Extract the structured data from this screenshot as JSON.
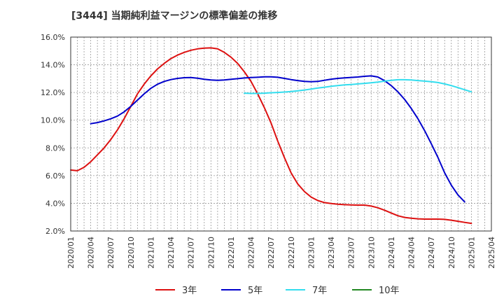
{
  "chart_data": {
    "type": "line",
    "title": "[3444]  当期純利益マージンの標準偏差の推移",
    "xlabel": "",
    "ylabel": "",
    "ylim": [
      2.0,
      16.0
    ],
    "yticks": [
      "2.0%",
      "4.0%",
      "6.0%",
      "8.0%",
      "10.0%",
      "12.0%",
      "14.0%",
      "16.0%"
    ],
    "ytick_values": [
      2,
      4,
      6,
      8,
      10,
      12,
      14,
      16
    ],
    "xticks": [
      "2020/01",
      "2020/04",
      "2020/07",
      "2020/10",
      "2021/01",
      "2021/04",
      "2021/07",
      "2021/10",
      "2022/01",
      "2022/04",
      "2022/07",
      "2022/10",
      "2023/01",
      "2023/04",
      "2023/07",
      "2023/10",
      "2024/01",
      "2024/04",
      "2024/07",
      "2024/10",
      "2025/01",
      "2025/04"
    ],
    "grid": true,
    "legend_position": "bottom",
    "series": [
      {
        "name": "3年",
        "color": "#dd1111",
        "points": [
          [
            "2020/01",
            6.4
          ],
          [
            "2020/02",
            6.35
          ],
          [
            "2020/03",
            6.6
          ],
          [
            "2020/04",
            7.0
          ],
          [
            "2020/05",
            7.5
          ],
          [
            "2020/06",
            8.0
          ],
          [
            "2020/07",
            8.6
          ],
          [
            "2020/08",
            9.3
          ],
          [
            "2020/09",
            10.1
          ],
          [
            "2020/10",
            11.0
          ],
          [
            "2020/11",
            11.9
          ],
          [
            "2020/12",
            12.6
          ],
          [
            "2021/01",
            13.2
          ],
          [
            "2021/02",
            13.7
          ],
          [
            "2021/03",
            14.1
          ],
          [
            "2021/04",
            14.45
          ],
          [
            "2021/05",
            14.7
          ],
          [
            "2021/06",
            14.9
          ],
          [
            "2021/07",
            15.05
          ],
          [
            "2021/08",
            15.15
          ],
          [
            "2021/09",
            15.2
          ],
          [
            "2021/10",
            15.22
          ],
          [
            "2021/11",
            15.15
          ],
          [
            "2021/12",
            14.9
          ],
          [
            "2022/01",
            14.55
          ],
          [
            "2022/02",
            14.1
          ],
          [
            "2022/03",
            13.5
          ],
          [
            "2022/04",
            12.8
          ],
          [
            "2022/05",
            11.9
          ],
          [
            "2022/06",
            10.9
          ],
          [
            "2022/07",
            9.8
          ],
          [
            "2022/08",
            8.5
          ],
          [
            "2022/09",
            7.3
          ],
          [
            "2022/10",
            6.2
          ],
          [
            "2022/11",
            5.4
          ],
          [
            "2022/12",
            4.85
          ],
          [
            "2023/01",
            4.45
          ],
          [
            "2023/02",
            4.2
          ],
          [
            "2023/03",
            4.05
          ],
          [
            "2023/04",
            3.98
          ],
          [
            "2023/05",
            3.93
          ],
          [
            "2023/06",
            3.9
          ],
          [
            "2023/07",
            3.88
          ],
          [
            "2023/08",
            3.87
          ],
          [
            "2023/09",
            3.87
          ],
          [
            "2023/10",
            3.8
          ],
          [
            "2023/11",
            3.68
          ],
          [
            "2023/12",
            3.5
          ],
          [
            "2024/01",
            3.3
          ],
          [
            "2024/02",
            3.1
          ],
          [
            "2024/03",
            2.98
          ],
          [
            "2024/04",
            2.92
          ],
          [
            "2024/05",
            2.88
          ],
          [
            "2024/06",
            2.86
          ],
          [
            "2024/07",
            2.86
          ],
          [
            "2024/08",
            2.86
          ],
          [
            "2024/09",
            2.84
          ],
          [
            "2024/10",
            2.78
          ],
          [
            "2024/11",
            2.7
          ],
          [
            "2024/12",
            2.62
          ],
          [
            "2025/01",
            2.55
          ]
        ]
      },
      {
        "name": "5年",
        "color": "#0000cc",
        "points": [
          [
            "2020/04",
            9.75
          ],
          [
            "2020/05",
            9.83
          ],
          [
            "2020/06",
            9.95
          ],
          [
            "2020/07",
            10.1
          ],
          [
            "2020/08",
            10.3
          ],
          [
            "2020/09",
            10.6
          ],
          [
            "2020/10",
            11.0
          ],
          [
            "2020/11",
            11.45
          ],
          [
            "2020/12",
            11.9
          ],
          [
            "2021/01",
            12.3
          ],
          [
            "2021/02",
            12.6
          ],
          [
            "2021/03",
            12.8
          ],
          [
            "2021/04",
            12.93
          ],
          [
            "2021/05",
            13.02
          ],
          [
            "2021/06",
            13.07
          ],
          [
            "2021/07",
            13.08
          ],
          [
            "2021/08",
            13.03
          ],
          [
            "2021/09",
            12.95
          ],
          [
            "2021/10",
            12.9
          ],
          [
            "2021/11",
            12.88
          ],
          [
            "2021/12",
            12.9
          ],
          [
            "2022/01",
            12.95
          ],
          [
            "2022/02",
            13.0
          ],
          [
            "2022/03",
            13.05
          ],
          [
            "2022/04",
            13.08
          ],
          [
            "2022/05",
            13.1
          ],
          [
            "2022/06",
            13.13
          ],
          [
            "2022/07",
            13.13
          ],
          [
            "2022/08",
            13.1
          ],
          [
            "2022/09",
            13.02
          ],
          [
            "2022/10",
            12.93
          ],
          [
            "2022/11",
            12.86
          ],
          [
            "2022/12",
            12.8
          ],
          [
            "2023/01",
            12.78
          ],
          [
            "2023/02",
            12.8
          ],
          [
            "2023/03",
            12.88
          ],
          [
            "2023/04",
            12.96
          ],
          [
            "2023/05",
            13.02
          ],
          [
            "2023/06",
            13.06
          ],
          [
            "2023/07",
            13.09
          ],
          [
            "2023/08",
            13.12
          ],
          [
            "2023/09",
            13.17
          ],
          [
            "2023/10",
            13.2
          ],
          [
            "2023/11",
            13.12
          ],
          [
            "2023/12",
            12.85
          ],
          [
            "2024/01",
            12.5
          ],
          [
            "2024/02",
            12.05
          ],
          [
            "2024/03",
            11.5
          ],
          [
            "2024/04",
            10.85
          ],
          [
            "2024/05",
            10.1
          ],
          [
            "2024/06",
            9.25
          ],
          [
            "2024/07",
            8.3
          ],
          [
            "2024/08",
            7.3
          ],
          [
            "2024/09",
            6.2
          ],
          [
            "2024/10",
            5.3
          ],
          [
            "2024/11",
            4.6
          ],
          [
            "2024/12",
            4.1
          ]
        ]
      },
      {
        "name": "7年",
        "color": "#33ddee",
        "points": [
          [
            "2022/03",
            11.95
          ],
          [
            "2022/04",
            11.93
          ],
          [
            "2022/05",
            11.93
          ],
          [
            "2022/06",
            11.95
          ],
          [
            "2022/07",
            11.98
          ],
          [
            "2022/08",
            12.0
          ],
          [
            "2022/09",
            12.03
          ],
          [
            "2022/10",
            12.07
          ],
          [
            "2022/11",
            12.12
          ],
          [
            "2022/12",
            12.18
          ],
          [
            "2023/01",
            12.25
          ],
          [
            "2023/02",
            12.32
          ],
          [
            "2023/03",
            12.38
          ],
          [
            "2023/04",
            12.45
          ],
          [
            "2023/05",
            12.5
          ],
          [
            "2023/06",
            12.55
          ],
          [
            "2023/07",
            12.58
          ],
          [
            "2023/08",
            12.62
          ],
          [
            "2023/09",
            12.66
          ],
          [
            "2023/10",
            12.7
          ],
          [
            "2023/11",
            12.75
          ],
          [
            "2023/12",
            12.82
          ],
          [
            "2024/01",
            12.88
          ],
          [
            "2024/02",
            12.92
          ],
          [
            "2024/03",
            12.92
          ],
          [
            "2024/04",
            12.9
          ],
          [
            "2024/05",
            12.86
          ],
          [
            "2024/06",
            12.82
          ],
          [
            "2024/07",
            12.78
          ],
          [
            "2024/08",
            12.72
          ],
          [
            "2024/09",
            12.62
          ],
          [
            "2024/10",
            12.5
          ],
          [
            "2024/11",
            12.35
          ],
          [
            "2024/12",
            12.2
          ],
          [
            "2025/01",
            12.05
          ]
        ]
      },
      {
        "name": "10年",
        "color": "#228822",
        "points": []
      }
    ]
  }
}
